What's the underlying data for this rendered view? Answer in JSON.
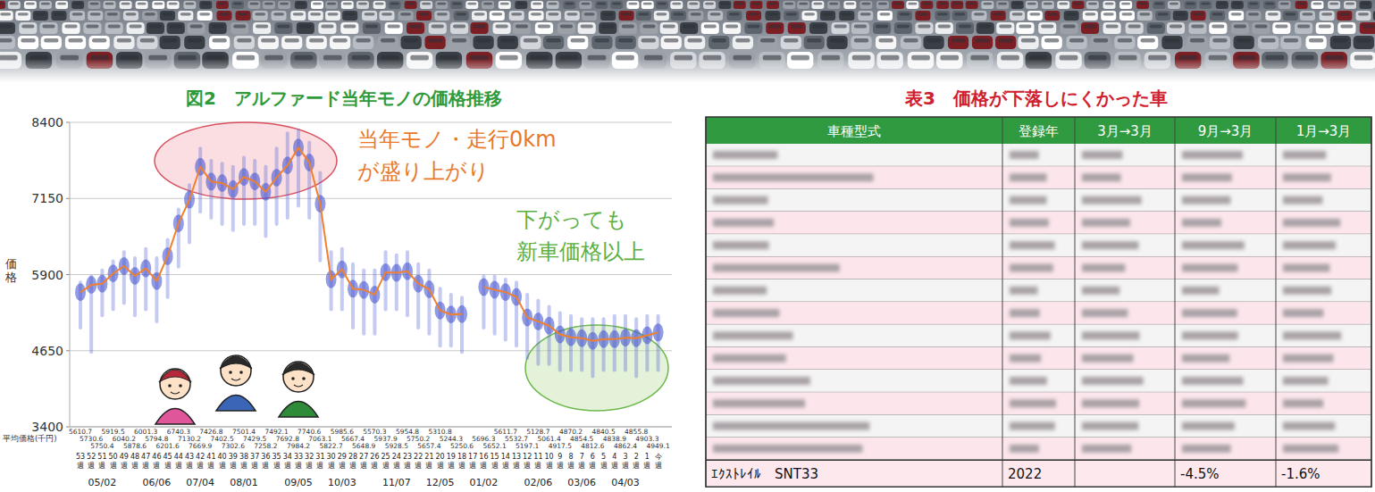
{
  "chart_data": {
    "type": "line",
    "title": "図2　アルファード当年モノの価格推移",
    "y_label": "価格",
    "categories": [
      "53週",
      "52週",
      "51週",
      "50週",
      "49週",
      "48週",
      "47週",
      "46週",
      "45週",
      "44週",
      "43週",
      "42週",
      "41週",
      "40週",
      "39週",
      "38週",
      "37週",
      "36週",
      "35週",
      "34週",
      "33週",
      "32週",
      "31週",
      "30週",
      "29週",
      "28週",
      "27週",
      "26週",
      "25週",
      "24週",
      "23週",
      "22週",
      "21週",
      "20週",
      "19週",
      "18週",
      "17週",
      "16週",
      "15週",
      "14週",
      "13週",
      "12週",
      "11週",
      "10週",
      "9週",
      "8週",
      "7週",
      "6週",
      "5週",
      "4週",
      "3週",
      "2週",
      "1週",
      "今週"
    ],
    "dates": [
      null,
      null,
      "05/02",
      null,
      null,
      null,
      null,
      "06/06",
      null,
      null,
      null,
      "07/04",
      null,
      null,
      null,
      "08/01",
      null,
      null,
      null,
      null,
      "09/05",
      null,
      null,
      null,
      "10/03",
      null,
      null,
      null,
      null,
      "11/07",
      null,
      null,
      null,
      "12/05",
      null,
      null,
      null,
      "01/02",
      null,
      null,
      null,
      null,
      "02/06",
      null,
      null,
      null,
      "03/06",
      null,
      null,
      null,
      "04/03",
      null,
      null,
      null
    ],
    "series": [
      {
        "name": "平均価格(千円)",
        "color": "#f08030",
        "values": [
          5610.7,
          5730.6,
          5750.4,
          5919.5,
          6040.2,
          5878.6,
          6001.3,
          5794.8,
          6201.6,
          6740.3,
          7130.2,
          7669.9,
          7426.8,
          7402.5,
          7302.6,
          7501.4,
          7429.5,
          7258.2,
          7492.1,
          7692.8,
          7984.2,
          7740.6,
          7063.1,
          5822.7,
          5985.6,
          5667.4,
          5648.9,
          5570.3,
          5937.9,
          5928.5,
          5954.8,
          5750.2,
          5657.4,
          5310.8,
          5244.3,
          5250.6,
          null,
          5696.3,
          5652.1,
          5611.7,
          5532.7,
          5197.1,
          5128.7,
          5061.4,
          4917.5,
          4870.2,
          4854.5,
          4812.6,
          4840.5,
          4838.9,
          4862.4,
          4855.8,
          4903.3,
          4949.1
        ]
      }
    ],
    "range_low": [
      5000,
      4600,
      5200,
      5300,
      5400,
      5200,
      5300,
      5100,
      5500,
      6000,
      6400,
      6900,
      6800,
      6700,
      6600,
      6700,
      6700,
      6500,
      6700,
      6800,
      7000,
      6800,
      6100,
      5300,
      5300,
      5000,
      4900,
      4900,
      5300,
      5300,
      5200,
      5000,
      4900,
      4700,
      4700,
      4600,
      null,
      5000,
      4900,
      4800,
      4700,
      4500,
      4400,
      4400,
      4300,
      4300,
      4300,
      4200,
      4300,
      4300,
      4300,
      4200,
      4300,
      4300
    ],
    "range_high": [
      5800,
      5900,
      6000,
      6150,
      6300,
      6200,
      6350,
      6200,
      6500,
      7000,
      7400,
      8000,
      7800,
      7750,
      7700,
      7850,
      7800,
      7700,
      8000,
      8250,
      8300,
      8100,
      7600,
      6300,
      6350,
      6100,
      6000,
      6000,
      6300,
      6250,
      6300,
      6100,
      6000,
      5700,
      5600,
      5550,
      null,
      5900,
      5900,
      5850,
      5800,
      5600,
      5500,
      5400,
      5300,
      5250,
      5200,
      5200,
      5200,
      5250,
      5250,
      5200,
      5250,
      5250
    ],
    "ylim": [
      3400,
      8400
    ],
    "yticks": [
      3400,
      4650,
      5900,
      7150,
      8400
    ],
    "grid": true,
    "data_labels": true,
    "annotations": [
      {
        "lines": [
          "当年モノ・走行0km",
          "が盛り上がり"
        ],
        "color": "#e8782a"
      },
      {
        "lines": [
          "下がっても",
          "新車価格以上"
        ],
        "color": "#5bb040"
      }
    ]
  },
  "table": {
    "title": "表3　価格が下落しにくかった車",
    "header": [
      "車種型式",
      "登録年",
      "3月→3月",
      "9月→3月",
      "1月→3月"
    ],
    "rows": [
      [
        "ｴｸｽﾄﾚｲﾙ　SNT33",
        "2022",
        null,
        "-4.5%",
        "-1.6%"
      ]
    ]
  }
}
